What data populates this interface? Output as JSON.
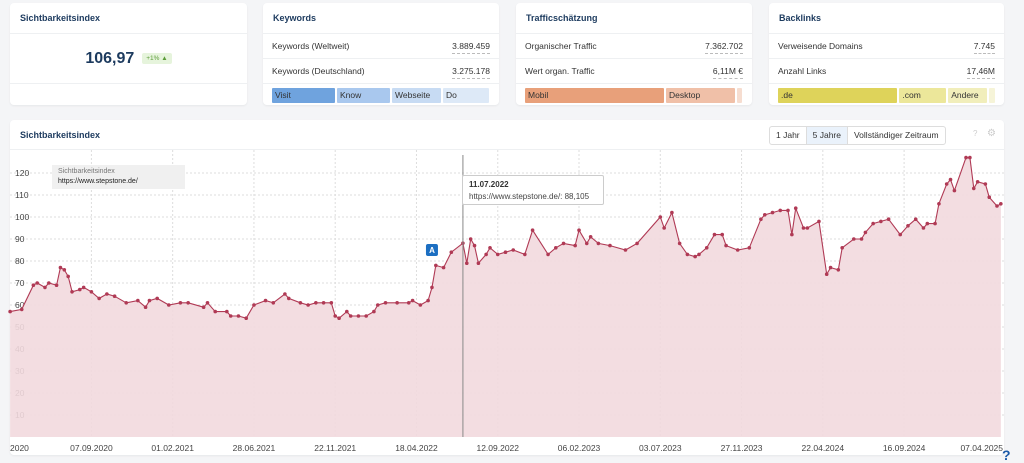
{
  "cards": {
    "visibility": {
      "title": "Sichtbarkeitsindex",
      "value": "106,97",
      "change": "+1% ▲"
    },
    "keywords": {
      "title": "Keywords",
      "rows": [
        {
          "label": "Keywords (Weltweit)",
          "value": "3.889.459"
        },
        {
          "label": "Keywords (Deutschland)",
          "value": "3.275.178"
        }
      ],
      "segments": [
        {
          "label": "Visit",
          "color": "#6fa3de"
        },
        {
          "label": "Know",
          "color": "#a9c8ee"
        },
        {
          "label": "Webseite",
          "color": "#c7dbf3"
        },
        {
          "label": "Do",
          "color": "#dde9f7"
        }
      ]
    },
    "traffic": {
      "title": "Trafficschätzung",
      "rows": [
        {
          "label": "Organischer Traffic",
          "value": "7.362.702"
        },
        {
          "label": "Wert organ. Traffic",
          "value": "6,11M €"
        }
      ],
      "segments": [
        {
          "label": "Mobil",
          "color": "#e8a07a"
        },
        {
          "label": "Desktop",
          "color": "#f0c0a8"
        },
        {
          "label": "",
          "color": "#f6ddd0"
        }
      ]
    },
    "backlinks": {
      "title": "Backlinks",
      "rows": [
        {
          "label": "Verweisende Domains",
          "value": "7.745"
        },
        {
          "label": "Anzahl Links",
          "value": "17,46M"
        }
      ],
      "segments": [
        {
          "label": ".de",
          "color": "#ded35a"
        },
        {
          "label": ".com",
          "color": "#ece79a"
        },
        {
          "label": "Andere",
          "color": "#f1eebb"
        },
        {
          "label": "",
          "color": "#f6f4d8"
        }
      ]
    }
  },
  "chart_panel": {
    "title": "Sichtbarkeitsindex",
    "ranges": [
      "1 Jahr",
      "5 Jahre",
      "Vollständiger Zeitraum"
    ],
    "active_range": "5 Jahre",
    "icons": [
      "help-icon",
      "gear-icon"
    ]
  },
  "chart_data": {
    "type": "area",
    "legend": {
      "series": "Sichtbarkeitsindex",
      "domain": "https://www.stepstone.de/"
    },
    "tooltip": {
      "date": "11.07.2022",
      "text": "https://www.stepstone.de/: 88,105"
    },
    "annotation": {
      "label": "A",
      "date": "16.05.2022"
    },
    "line_color": "#b03a55",
    "fill_color": "#f2d9de",
    "grid": true,
    "ylim": [
      0,
      130
    ],
    "yticks": [
      10,
      20,
      30,
      40,
      50,
      60,
      70,
      80,
      90,
      100,
      110,
      120
    ],
    "xticks": [
      "2020",
      "07.09.2020",
      "01.02.2021",
      "28.06.2021",
      "22.11.2021",
      "18.04.2022",
      "12.09.2022",
      "06.02.2023",
      "03.07.2023",
      "27.11.2023",
      "22.04.2024",
      "16.09.2024",
      "07.04.2025"
    ],
    "points": [
      [
        "13.04.2020",
        57
      ],
      [
        "04.05.2020",
        58
      ],
      [
        "25.05.2020",
        69
      ],
      [
        "01.06.2020",
        70
      ],
      [
        "15.06.2020",
        68
      ],
      [
        "22.06.2020",
        70
      ],
      [
        "06.07.2020",
        69
      ],
      [
        "13.07.2020",
        77
      ],
      [
        "20.07.2020",
        76
      ],
      [
        "27.07.2020",
        73
      ],
      [
        "03.08.2020",
        66
      ],
      [
        "17.08.2020",
        67
      ],
      [
        "24.08.2020",
        68
      ],
      [
        "07.09.2020",
        66
      ],
      [
        "21.09.2020",
        63
      ],
      [
        "05.10.2020",
        65
      ],
      [
        "19.10.2020",
        64
      ],
      [
        "09.11.2020",
        61
      ],
      [
        "30.11.2020",
        62
      ],
      [
        "14.12.2020",
        59
      ],
      [
        "21.12.2020",
        62
      ],
      [
        "04.01.2021",
        63
      ],
      [
        "25.01.2021",
        60
      ],
      [
        "15.02.2021",
        61
      ],
      [
        "01.03.2021",
        61
      ],
      [
        "29.03.2021",
        59
      ],
      [
        "05.04.2021",
        61
      ],
      [
        "19.04.2021",
        57
      ],
      [
        "10.05.2021",
        57
      ],
      [
        "17.05.2021",
        55
      ],
      [
        "31.05.2021",
        55
      ],
      [
        "14.06.2021",
        54
      ],
      [
        "28.06.2021",
        60
      ],
      [
        "19.07.2021",
        62
      ],
      [
        "02.08.2021",
        61
      ],
      [
        "23.08.2021",
        65
      ],
      [
        "30.08.2021",
        63
      ],
      [
        "20.09.2021",
        61
      ],
      [
        "04.10.2021",
        60
      ],
      [
        "18.10.2021",
        61
      ],
      [
        "01.11.2021",
        61
      ],
      [
        "15.11.2021",
        61
      ],
      [
        "22.11.2021",
        55
      ],
      [
        "29.11.2021",
        54
      ],
      [
        "13.12.2021",
        57
      ],
      [
        "20.12.2021",
        55
      ],
      [
        "03.01.2022",
        55
      ],
      [
        "17.01.2022",
        55
      ],
      [
        "31.01.2022",
        57
      ],
      [
        "07.02.2022",
        60
      ],
      [
        "21.02.2022",
        61
      ],
      [
        "14.03.2022",
        61
      ],
      [
        "04.04.2022",
        61
      ],
      [
        "11.04.2022",
        62
      ],
      [
        "25.04.2022",
        60
      ],
      [
        "09.05.2022",
        62
      ],
      [
        "16.05.2022",
        68
      ],
      [
        "23.05.2022",
        78
      ],
      [
        "06.06.2022",
        77
      ],
      [
        "20.06.2022",
        84
      ],
      [
        "11.07.2022",
        88.105
      ],
      [
        "18.07.2022",
        79
      ],
      [
        "25.07.2022",
        90
      ],
      [
        "01.08.2022",
        87
      ],
      [
        "08.08.2022",
        79
      ],
      [
        "22.08.2022",
        83
      ],
      [
        "29.08.2022",
        86
      ],
      [
        "12.09.2022",
        83
      ],
      [
        "26.09.2022",
        84
      ],
      [
        "10.10.2022",
        85
      ],
      [
        "31.10.2022",
        83
      ],
      [
        "14.11.2022",
        94
      ],
      [
        "12.12.2022",
        83
      ],
      [
        "26.12.2022",
        86
      ],
      [
        "09.01.2023",
        88
      ],
      [
        "30.01.2023",
        87
      ],
      [
        "06.02.2023",
        94
      ],
      [
        "20.02.2023",
        88
      ],
      [
        "27.02.2023",
        91
      ],
      [
        "13.03.2023",
        88
      ],
      [
        "03.04.2023",
        87
      ],
      [
        "01.05.2023",
        85
      ],
      [
        "22.05.2023",
        88
      ],
      [
        "03.07.2023",
        100
      ],
      [
        "10.07.2023",
        95
      ],
      [
        "24.07.2023",
        102
      ],
      [
        "07.08.2023",
        88
      ],
      [
        "21.08.2023",
        83
      ],
      [
        "04.09.2023",
        82
      ],
      [
        "11.09.2023",
        83
      ],
      [
        "25.09.2023",
        86
      ],
      [
        "09.10.2023",
        92
      ],
      [
        "23.10.2023",
        92
      ],
      [
        "30.10.2023",
        87
      ],
      [
        "20.11.2023",
        85
      ],
      [
        "11.12.2023",
        86
      ],
      [
        "01.01.2024",
        99
      ],
      [
        "08.01.2024",
        101
      ],
      [
        "22.01.2024",
        102
      ],
      [
        "05.02.2024",
        103
      ],
      [
        "19.02.2024",
        103
      ],
      [
        "26.02.2024",
        92
      ],
      [
        "04.03.2024",
        104
      ],
      [
        "18.03.2024",
        95
      ],
      [
        "25.03.2024",
        95
      ],
      [
        "15.04.2024",
        98
      ],
      [
        "29.04.2024",
        74
      ],
      [
        "06.05.2024",
        77
      ],
      [
        "20.05.2024",
        76
      ],
      [
        "27.05.2024",
        86
      ],
      [
        "17.06.2024",
        90
      ],
      [
        "01.07.2024",
        90
      ],
      [
        "08.07.2024",
        93
      ],
      [
        "22.07.2024",
        97
      ],
      [
        "05.08.2024",
        98
      ],
      [
        "19.08.2024",
        99
      ],
      [
        "09.09.2024",
        92
      ],
      [
        "23.09.2024",
        96
      ],
      [
        "07.10.2024",
        99
      ],
      [
        "21.10.2024",
        95
      ],
      [
        "28.10.2024",
        97
      ],
      [
        "11.11.2024",
        97
      ],
      [
        "18.11.2024",
        106
      ],
      [
        "02.12.2024",
        115
      ],
      [
        "09.12.2024",
        117
      ],
      [
        "16.12.2024",
        112
      ],
      [
        "06.01.2025",
        127
      ],
      [
        "13.01.2025",
        127
      ],
      [
        "20.01.2025",
        113
      ],
      [
        "27.01.2025",
        116
      ],
      [
        "10.02.2025",
        115
      ],
      [
        "17.02.2025",
        109
      ],
      [
        "03.03.2025",
        105
      ],
      [
        "10.03.2025",
        106
      ]
    ]
  }
}
